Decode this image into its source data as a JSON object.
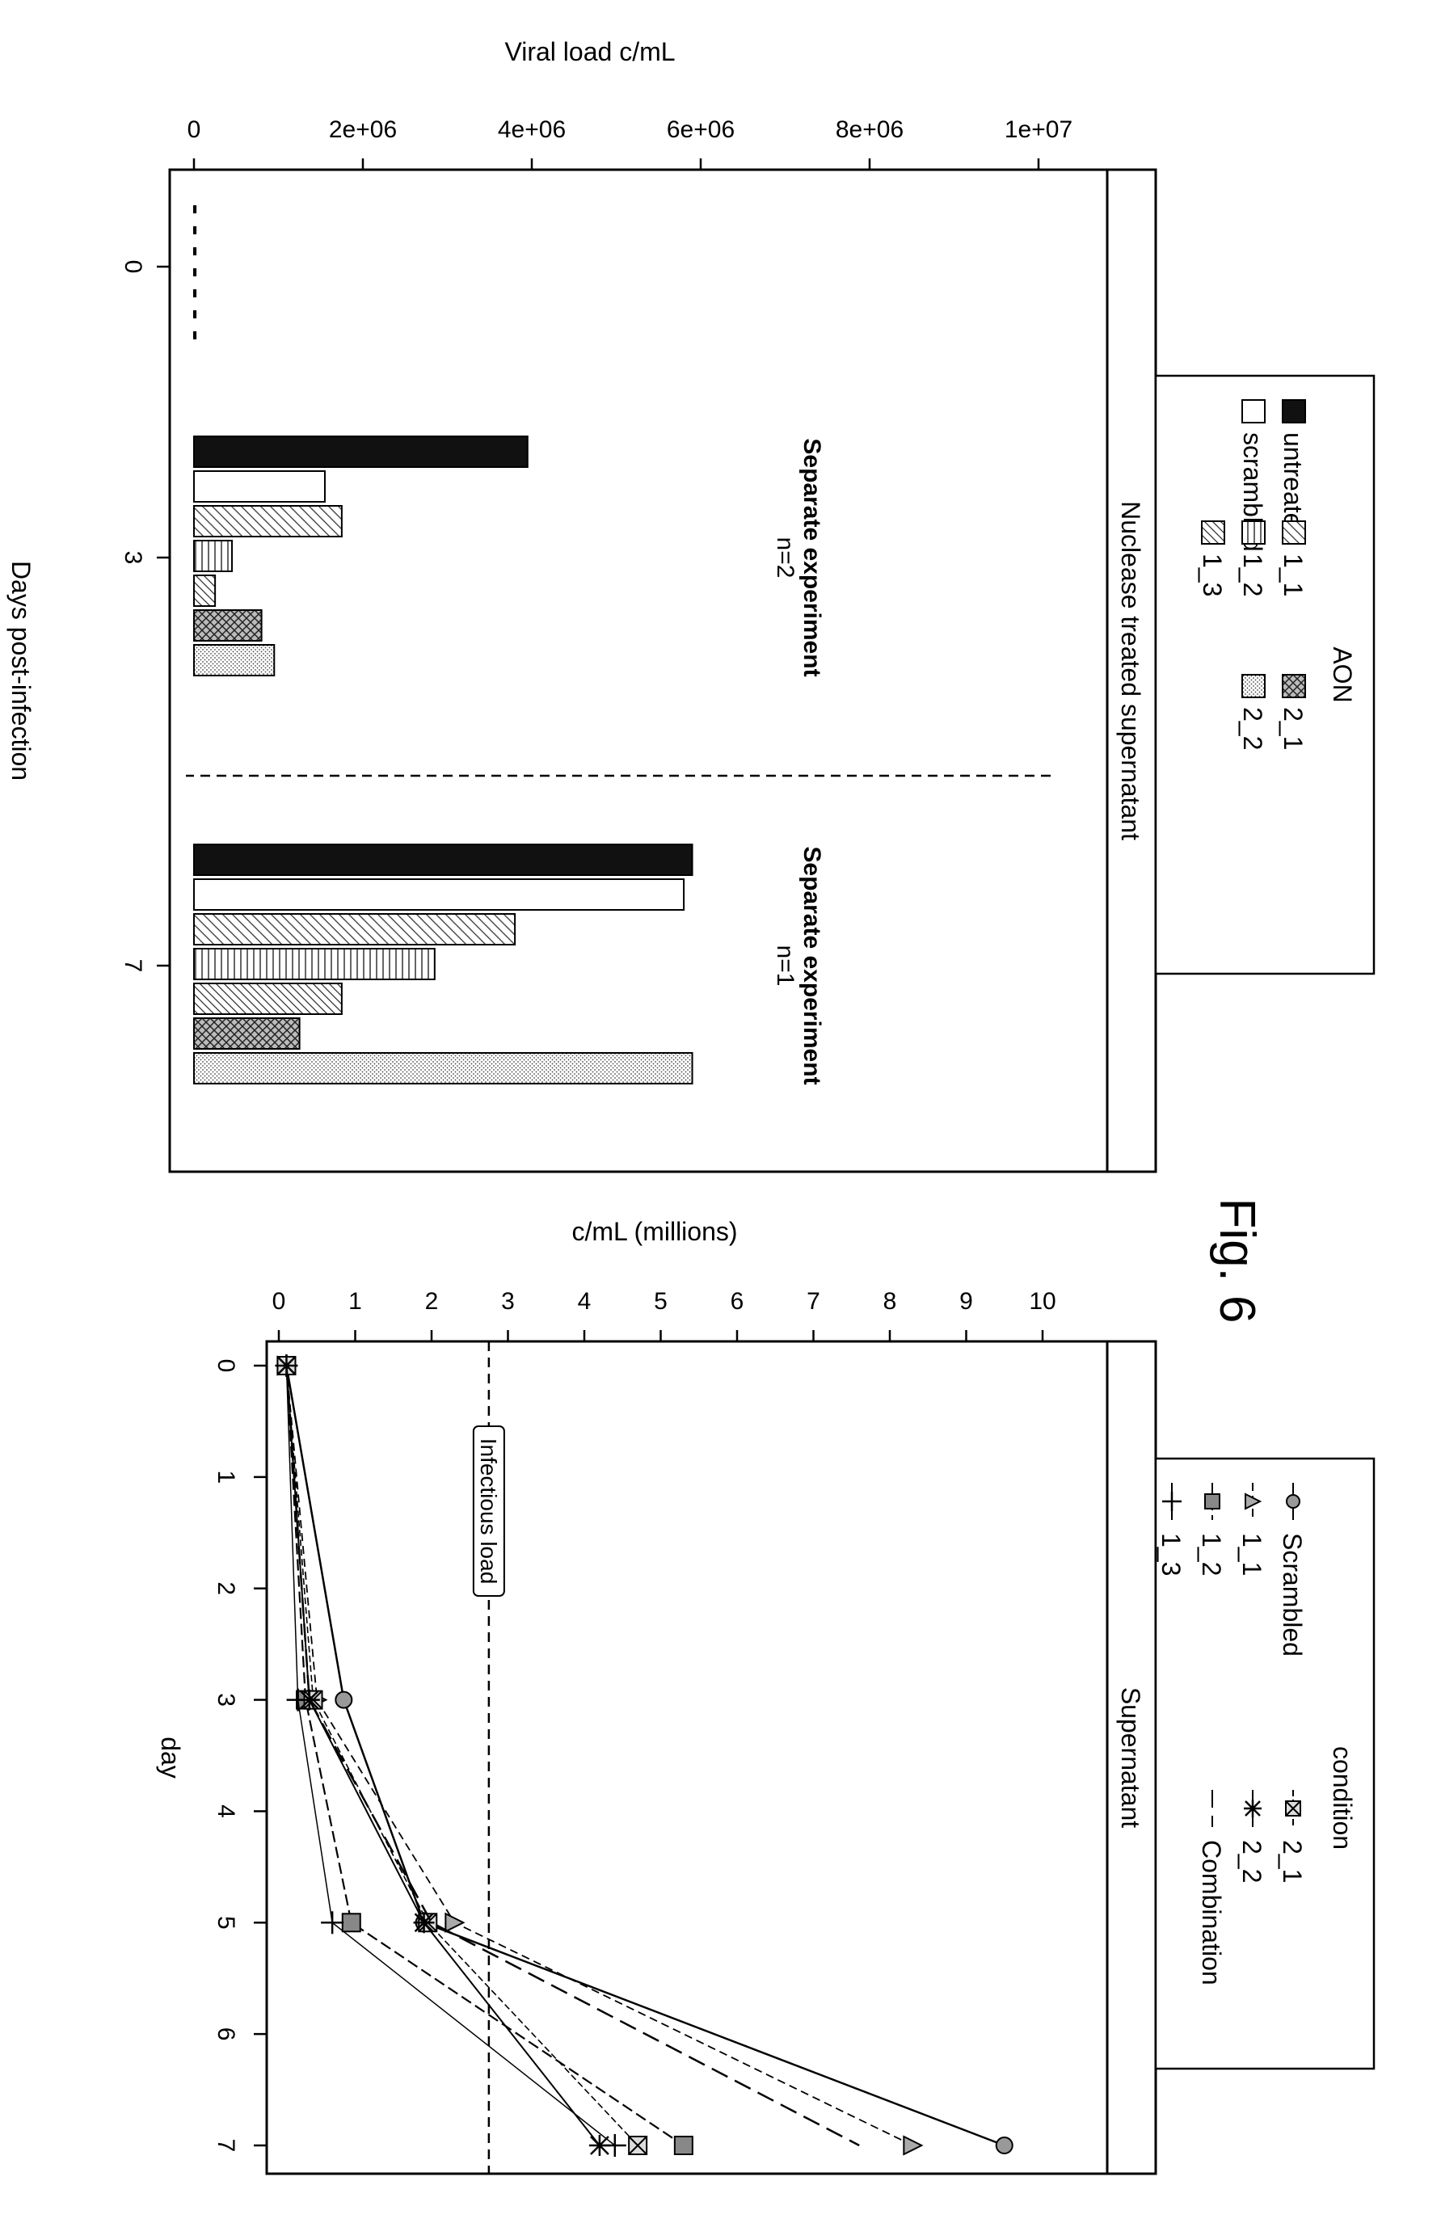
{
  "figure_label": "Fig. 6",
  "chart_data": [
    {
      "type": "bar",
      "panel_title": "Nuclease treated supernatant",
      "xlabel": "Days post-infection",
      "ylabel": "Viral load c/mL",
      "categories": [
        "0",
        "3",
        "7"
      ],
      "ylim": [
        0,
        10000000
      ],
      "y_ticks": [
        "0",
        "2e+06",
        "4e+06",
        "6e+06",
        "8e+06",
        "1e+07"
      ],
      "legend": {
        "title": "AON",
        "position": "top",
        "entries": [
          "untreated",
          "scrambled",
          "1_1",
          "1_2",
          "1_3",
          "2_1",
          "2_2"
        ]
      },
      "series": [
        {
          "name": "untreated",
          "values": [
            20000,
            3950000,
            5900000
          ]
        },
        {
          "name": "scrambled",
          "values": [
            20000,
            1550000,
            5800000
          ]
        },
        {
          "name": "1_1",
          "values": [
            20000,
            1750000,
            3800000
          ]
        },
        {
          "name": "1_2",
          "values": [
            20000,
            450000,
            2850000
          ]
        },
        {
          "name": "1_3",
          "values": [
            20000,
            250000,
            1750000
          ]
        },
        {
          "name": "2_1",
          "values": [
            20000,
            800000,
            1250000
          ]
        },
        {
          "name": "2_2",
          "values": [
            20000,
            950000,
            5900000
          ]
        }
      ],
      "annotations": [
        {
          "title": "Separate experiment",
          "subtitle": "n=2"
        },
        {
          "title": "Separate experiment",
          "subtitle": "n=1"
        }
      ],
      "grid": false
    },
    {
      "type": "line",
      "panel_title": "Supernatant",
      "xlabel": "day",
      "ylabel": "c/mL (millions)",
      "xlim": [
        0,
        7
      ],
      "ylim": [
        0,
        10
      ],
      "x_ticks": [
        "0",
        "1",
        "2",
        "3",
        "4",
        "5",
        "6",
        "7"
      ],
      "y_ticks": [
        "0",
        "1",
        "2",
        "3",
        "4",
        "5",
        "6",
        "7",
        "8",
        "9",
        "10"
      ],
      "reference_line": {
        "value": 2.75,
        "label": "Infectious load"
      },
      "legend": {
        "title": "condition",
        "position": "top",
        "entries": [
          "Scrambled",
          "1_1",
          "1_2",
          "1_3",
          "2_1",
          "2_2",
          "Combination"
        ]
      },
      "series": [
        {
          "name": "Scrambled",
          "x": [
            0,
            3,
            5,
            7
          ],
          "y": [
            0.1,
            0.85,
            1.9,
            9.5
          ]
        },
        {
          "name": "1_1",
          "x": [
            0,
            3,
            5,
            7
          ],
          "y": [
            0.1,
            0.5,
            2.3,
            8.3
          ]
        },
        {
          "name": "1_2",
          "x": [
            0,
            3,
            5,
            7
          ],
          "y": [
            0.1,
            0.35,
            0.95,
            5.3
          ]
        },
        {
          "name": "1_3",
          "x": [
            0,
            3,
            5,
            7
          ],
          "y": [
            0.1,
            0.25,
            0.7,
            4.4
          ]
        },
        {
          "name": "2_1",
          "x": [
            0,
            3,
            5,
            7
          ],
          "y": [
            0.1,
            0.45,
            1.95,
            4.7
          ]
        },
        {
          "name": "2_2",
          "x": [
            0,
            3,
            5,
            7
          ],
          "y": [
            0.1,
            0.4,
            1.9,
            4.2
          ]
        },
        {
          "name": "Combination",
          "x": [
            0,
            3,
            5,
            7
          ],
          "y": [
            0.1,
            0.4,
            2.0,
            7.6
          ]
        }
      ],
      "grid": false
    }
  ]
}
